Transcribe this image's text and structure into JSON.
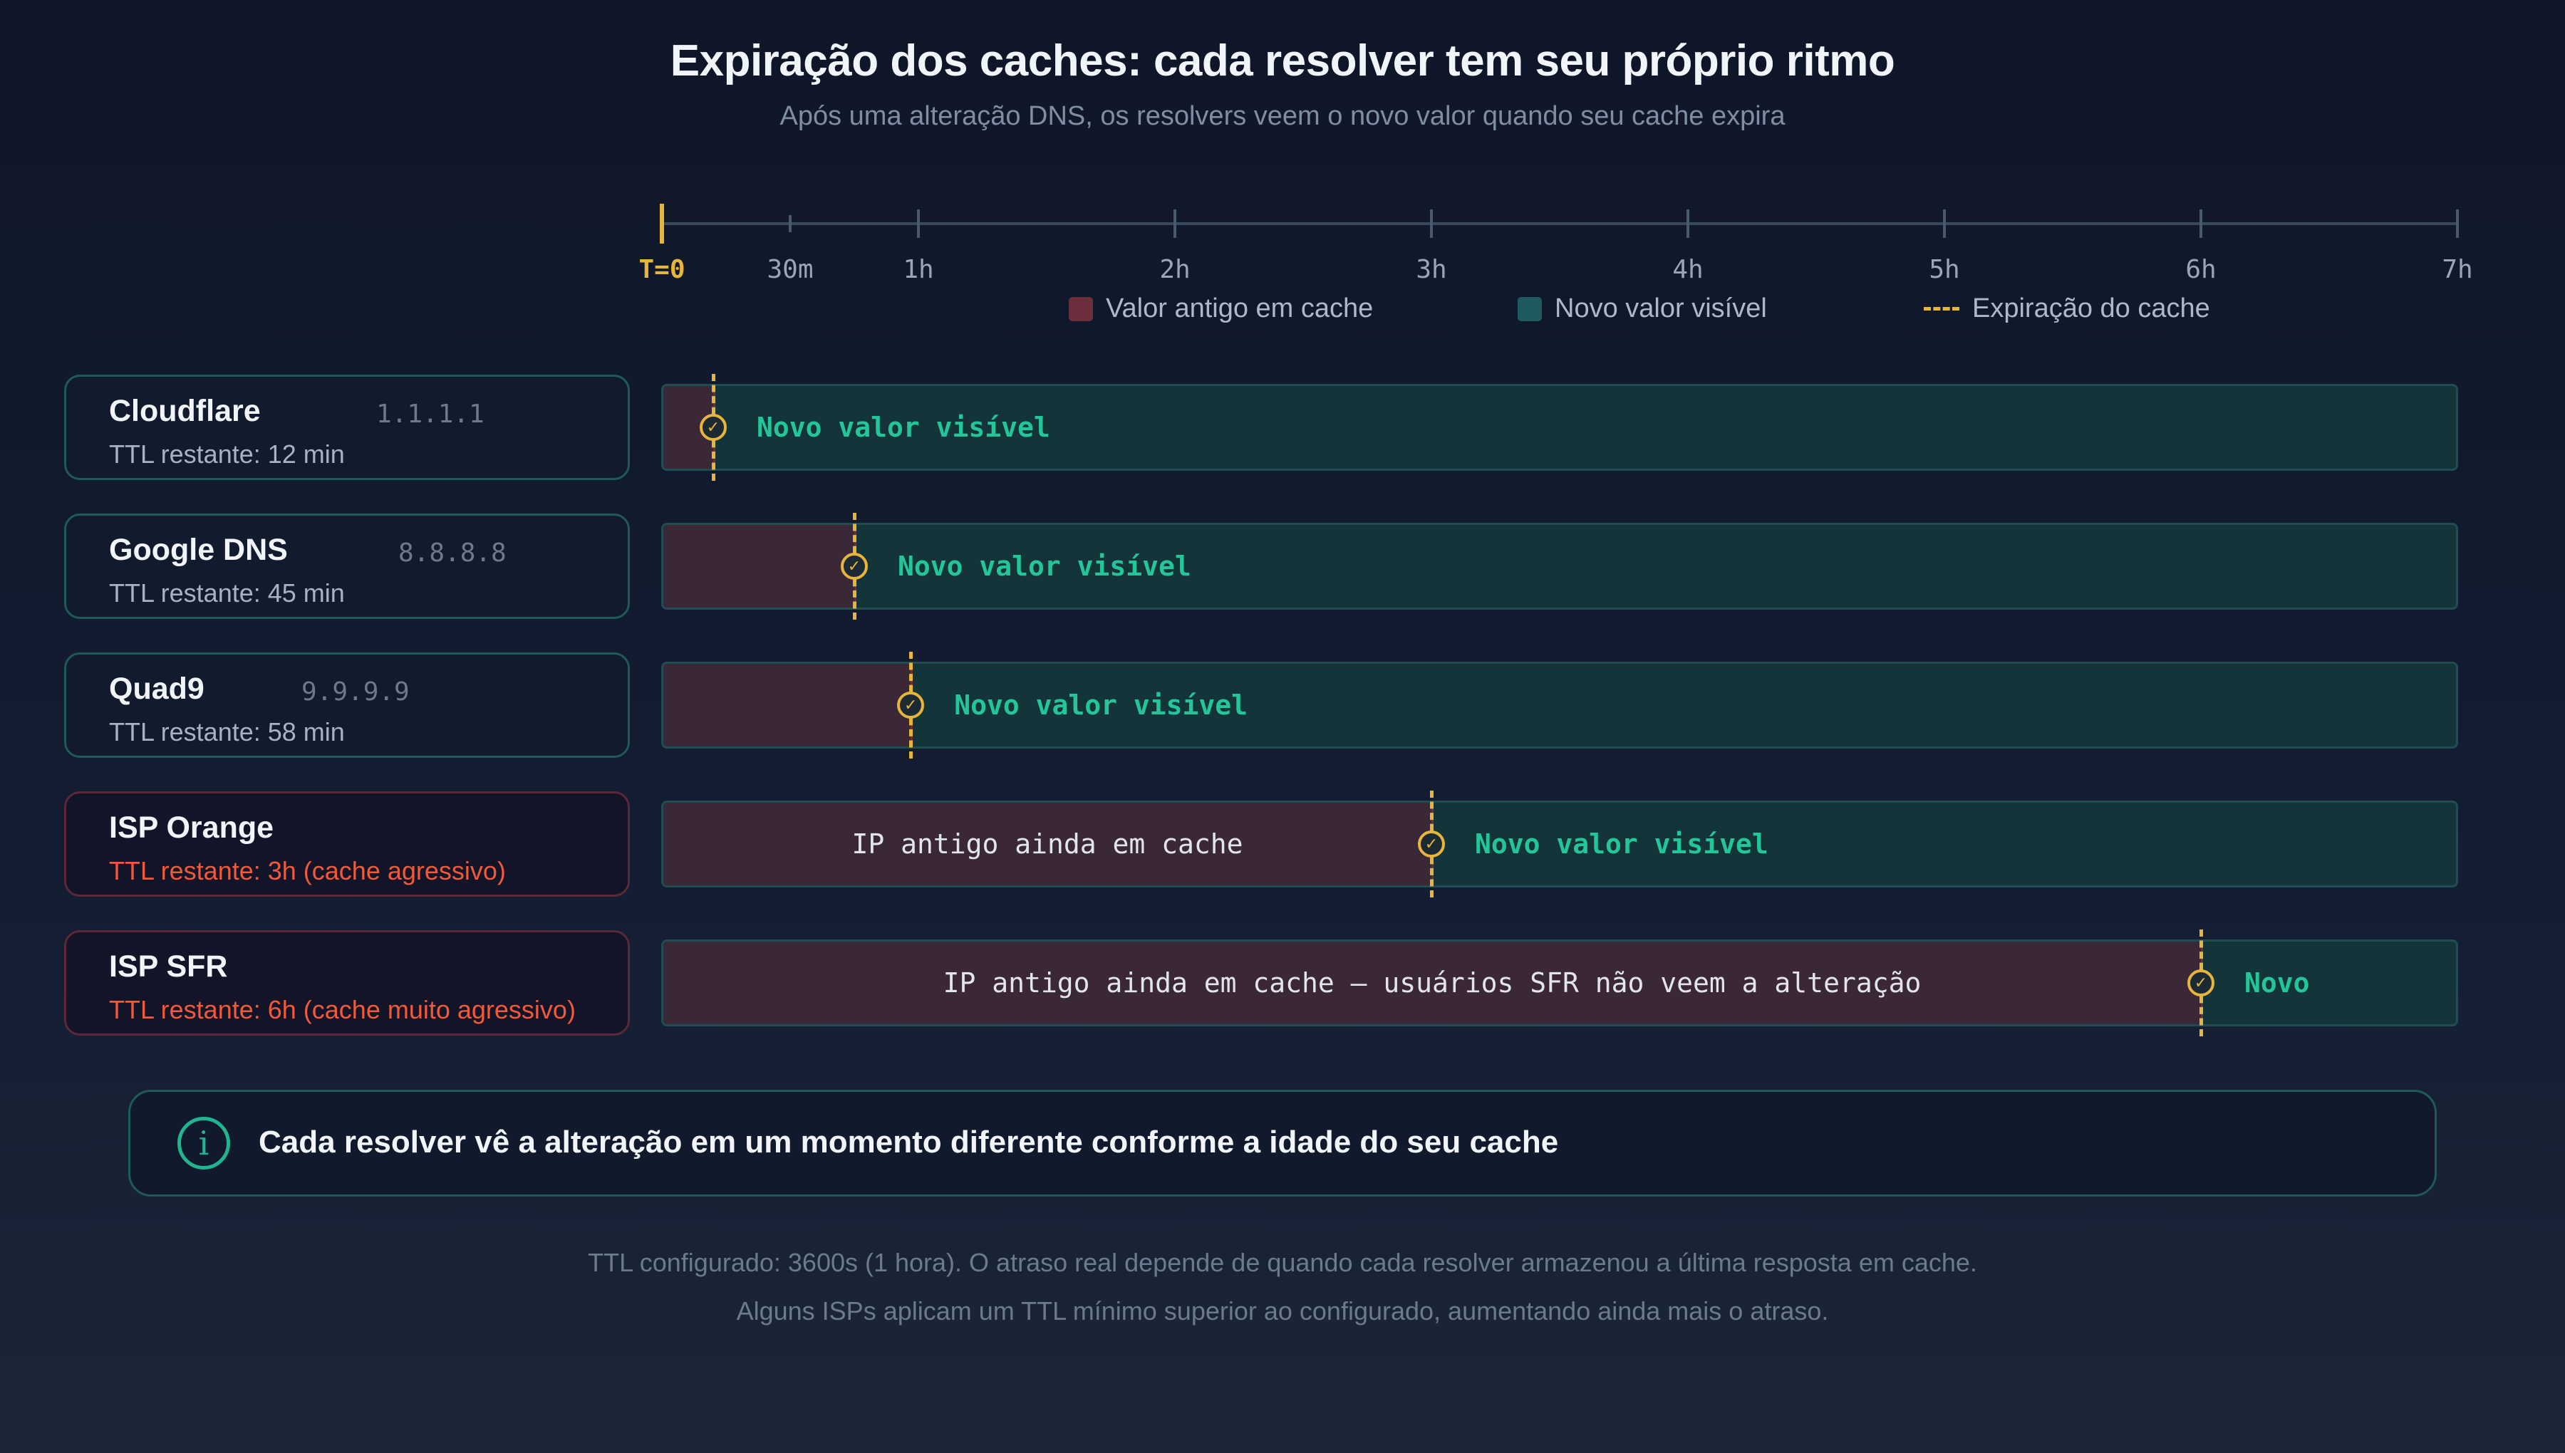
{
  "title": "Expiração dos caches: cada resolver tem seu próprio ritmo",
  "subtitle": "Após uma alteração DNS, os resolvers veem o novo valor quando seu cache expira",
  "axis": {
    "max_hours": 7,
    "ticks": [
      {
        "label": "T=0",
        "hours": 0,
        "major": true,
        "highlight": true
      },
      {
        "label": "30m",
        "hours": 0.5,
        "major": false
      },
      {
        "label": "1h",
        "hours": 1,
        "major": true
      },
      {
        "label": "2h",
        "hours": 2,
        "major": true
      },
      {
        "label": "3h",
        "hours": 3,
        "major": true
      },
      {
        "label": "4h",
        "hours": 4,
        "major": true
      },
      {
        "label": "5h",
        "hours": 5,
        "major": true
      },
      {
        "label": "6h",
        "hours": 6,
        "major": true
      },
      {
        "label": "7h",
        "hours": 7,
        "major": true
      }
    ]
  },
  "legend": {
    "old": "Valor antigo em cache",
    "new": "Novo valor visível",
    "expiry": "Expiração do cache"
  },
  "colors": {
    "old": "#3a2836",
    "new": "#133439",
    "expiry": "#e7b53c",
    "new_text": "#25c59b",
    "warning": "#ef5a3c"
  },
  "resolvers": [
    {
      "name": "Cloudflare",
      "ip": "1.1.1.1",
      "ttl": "TTL restante: 12 min",
      "expiry_hours": 0.2,
      "status": "ok",
      "old_label": "",
      "new_label": "Novo valor visível"
    },
    {
      "name": "Google DNS",
      "ip": "8.8.8.8",
      "ttl": "TTL restante: 45 min",
      "expiry_hours": 0.75,
      "status": "ok",
      "old_label": "",
      "new_label": "Novo valor visível"
    },
    {
      "name": "Quad9",
      "ip": "9.9.9.9",
      "ttl": "TTL restante: 58 min",
      "expiry_hours": 0.97,
      "status": "ok",
      "old_label": "",
      "new_label": "Novo valor visível"
    },
    {
      "name": "ISP Orange",
      "ip": "",
      "ttl": "TTL restante: 3h (cache agressivo)",
      "expiry_hours": 3,
      "status": "bad",
      "old_label": "IP antigo ainda em cache",
      "new_label": "Novo valor visível"
    },
    {
      "name": "ISP SFR",
      "ip": "",
      "ttl": "TTL restante: 6h (cache muito agressivo)",
      "expiry_hours": 6,
      "status": "bad",
      "old_label": "IP antigo ainda em cache — usuários SFR não veem a alteração",
      "new_label": "Novo"
    }
  ],
  "callout": {
    "icon": "info-icon",
    "text": "Cada resolver vê a alteração em um momento diferente conforme a idade do seu cache"
  },
  "footer": {
    "line1": "TTL configurado: 3600s (1 hora). O atraso real depende de quando cada resolver armazenou a última resposta em cache.",
    "line2": "Alguns ISPs aplicam um TTL mínimo superior ao configurado, aumentando ainda mais o atraso."
  }
}
